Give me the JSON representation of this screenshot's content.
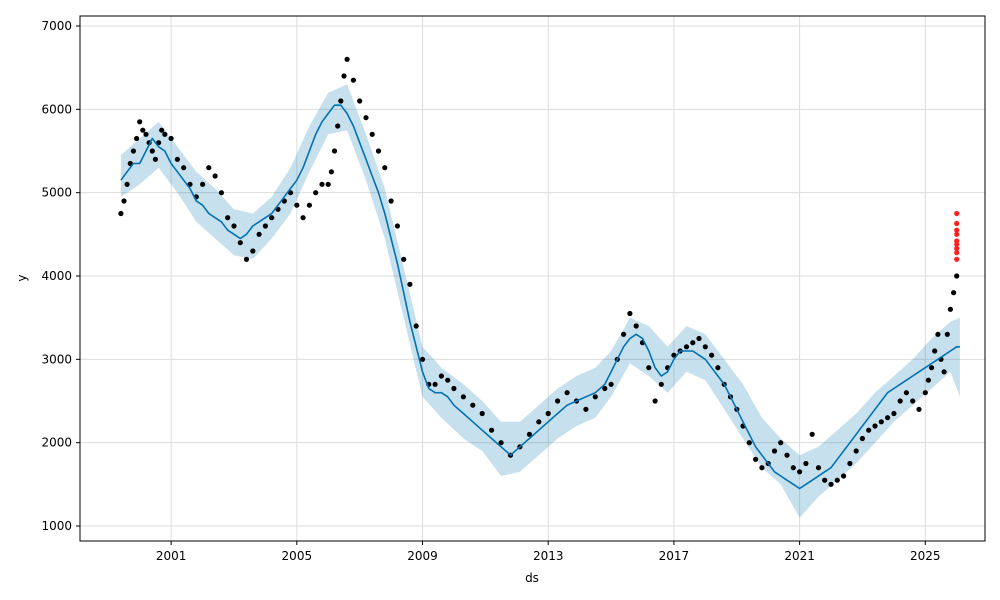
{
  "chart_data": {
    "type": "scatter",
    "title": "",
    "xlabel": "ds",
    "ylabel": "y",
    "xlim": [
      1998.1,
      2026.9
    ],
    "ylim": [
      820,
      7120
    ],
    "grid": true,
    "legend": "none",
    "x_ticks": [
      {
        "value": 2001,
        "label": "2001"
      },
      {
        "value": 2005,
        "label": "2005"
      },
      {
        "value": 2009,
        "label": "2009"
      },
      {
        "value": 2013,
        "label": "2013"
      },
      {
        "value": 2017,
        "label": "2017"
      },
      {
        "value": 2021,
        "label": "2021"
      },
      {
        "value": 2025,
        "label": "2025"
      }
    ],
    "y_ticks": [
      {
        "value": 1000,
        "label": "1000"
      },
      {
        "value": 2000,
        "label": "2000"
      },
      {
        "value": 3000,
        "label": "3000"
      },
      {
        "value": 4000,
        "label": "4000"
      },
      {
        "value": 5000,
        "label": "5000"
      },
      {
        "value": 6000,
        "label": "6000"
      },
      {
        "value": 7000,
        "label": "7000"
      }
    ],
    "colors": {
      "observed": "#000000",
      "forecast": "#0072B2",
      "interval": "#0072B2",
      "recent": "#ff2020",
      "grid": "#dddddd"
    },
    "series": [
      {
        "role": "observed",
        "kind": "scatter",
        "x": [
          1999.4,
          1999.5,
          1999.6,
          1999.7,
          1999.8,
          1999.9,
          2000.0,
          2000.1,
          2000.2,
          2000.3,
          2000.4,
          2000.5,
          2000.6,
          2000.7,
          2000.8,
          2001.0,
          2001.2,
          2001.4,
          2001.6,
          2001.8,
          2002.0,
          2002.2,
          2002.4,
          2002.6,
          2002.8,
          2003.0,
          2003.2,
          2003.4,
          2003.6,
          2003.8,
          2004.0,
          2004.2,
          2004.4,
          2004.6,
          2004.8,
          2005.0,
          2005.2,
          2005.4,
          2005.6,
          2005.8,
          2006.0,
          2006.1,
          2006.2,
          2006.3,
          2006.4,
          2006.5,
          2006.6,
          2006.8,
          2007.0,
          2007.2,
          2007.4,
          2007.6,
          2007.8,
          2008.0,
          2008.2,
          2008.4,
          2008.6,
          2008.8,
          2009.0,
          2009.2,
          2009.4,
          2009.6,
          2009.8,
          2010.0,
          2010.3,
          2010.6,
          2010.9,
          2011.2,
          2011.5,
          2011.8,
          2012.1,
          2012.4,
          2012.7,
          2013.0,
          2013.3,
          2013.6,
          2013.9,
          2014.2,
          2014.5,
          2014.8,
          2015.0,
          2015.2,
          2015.4,
          2015.6,
          2015.8,
          2016.0,
          2016.2,
          2016.4,
          2016.6,
          2016.8,
          2017.0,
          2017.2,
          2017.4,
          2017.6,
          2017.8,
          2018.0,
          2018.2,
          2018.4,
          2018.6,
          2018.8,
          2019.0,
          2019.2,
          2019.4,
          2019.6,
          2019.8,
          2020.0,
          2020.2,
          2020.4,
          2020.6,
          2020.8,
          2021.0,
          2021.2,
          2021.4,
          2021.6,
          2021.8,
          2022.0,
          2022.2,
          2022.4,
          2022.6,
          2022.8,
          2023.0,
          2023.2,
          2023.4,
          2023.6,
          2023.8,
          2024.0,
          2024.2,
          2024.4,
          2024.6,
          2024.8,
          2025.0,
          2025.1,
          2025.2,
          2025.3,
          2025.4,
          2025.5,
          2025.6,
          2025.7,
          2025.8,
          2025.9,
          2026.0
        ],
        "y": [
          4750,
          4900,
          5100,
          5350,
          5500,
          5650,
          5850,
          5750,
          5700,
          5600,
          5500,
          5400,
          5600,
          5750,
          5700,
          5650,
          5400,
          5300,
          5100,
          4950,
          5100,
          5300,
          5200,
          5000,
          4700,
          4600,
          4400,
          4200,
          4300,
          4500,
          4600,
          4700,
          4800,
          4900,
          5000,
          4850,
          4700,
          4850,
          5000,
          5100,
          5100,
          5250,
          5500,
          5800,
          6100,
          6400,
          6600,
          6350,
          6100,
          5900,
          5700,
          5500,
          5300,
          4900,
          4600,
          4200,
          3900,
          3400,
          3000,
          2700,
          2700,
          2800,
          2750,
          2650,
          2550,
          2450,
          2350,
          2150,
          2000,
          1850,
          1950,
          2100,
          2250,
          2350,
          2500,
          2600,
          2500,
          2400,
          2550,
          2650,
          2700,
          3000,
          3300,
          3550,
          3400,
          3200,
          2900,
          2500,
          2700,
          2900,
          3050,
          3100,
          3150,
          3200,
          3250,
          3150,
          3050,
          2900,
          2700,
          2550,
          2400,
          2200,
          2000,
          1800,
          1700,
          1750,
          1900,
          2000,
          1850,
          1700,
          1650,
          1750,
          2100,
          1700,
          1550,
          1500,
          1550,
          1600,
          1750,
          1900,
          2050,
          2150,
          2200,
          2250,
          2300,
          2350,
          2500,
          2600,
          2500,
          2400,
          2600,
          2750,
          2900,
          3100,
          3300,
          3000,
          2850,
          3300,
          3600,
          3800,
          4000
        ]
      },
      {
        "role": "forecast",
        "kind": "line",
        "x": [
          1999.4,
          1999.6,
          1999.8,
          2000.0,
          2000.2,
          2000.4,
          2000.6,
          2000.8,
          2001.0,
          2001.2,
          2001.4,
          2001.6,
          2001.8,
          2002.0,
          2002.2,
          2002.4,
          2002.6,
          2002.8,
          2003.0,
          2003.2,
          2003.4,
          2003.6,
          2003.8,
          2004.0,
          2004.2,
          2004.4,
          2004.6,
          2004.8,
          2005.0,
          2005.2,
          2005.4,
          2005.6,
          2005.8,
          2006.0,
          2006.2,
          2006.4,
          2006.6,
          2006.8,
          2007.0,
          2007.2,
          2007.4,
          2007.6,
          2007.8,
          2008.0,
          2008.2,
          2008.4,
          2008.6,
          2008.8,
          2009.0,
          2009.2,
          2009.4,
          2009.6,
          2009.8,
          2010.0,
          2010.3,
          2010.6,
          2010.9,
          2011.2,
          2011.5,
          2011.8,
          2012.1,
          2012.4,
          2012.7,
          2013.0,
          2013.3,
          2013.6,
          2013.9,
          2014.2,
          2014.5,
          2014.8,
          2015.0,
          2015.2,
          2015.4,
          2015.6,
          2015.8,
          2016.0,
          2016.2,
          2016.4,
          2016.6,
          2016.8,
          2017.0,
          2017.2,
          2017.4,
          2017.6,
          2017.8,
          2018.0,
          2018.2,
          2018.4,
          2018.6,
          2018.8,
          2019.0,
          2019.2,
          2019.4,
          2019.6,
          2019.8,
          2020.0,
          2020.2,
          2020.4,
          2020.6,
          2020.8,
          2021.0,
          2021.2,
          2021.4,
          2021.6,
          2021.8,
          2022.0,
          2022.2,
          2022.4,
          2022.6,
          2022.8,
          2023.0,
          2023.2,
          2023.4,
          2023.6,
          2023.8,
          2024.0,
          2024.2,
          2024.4,
          2024.6,
          2024.8,
          2025.0,
          2025.2,
          2025.4,
          2025.6,
          2025.8,
          2026.0,
          2026.1
        ],
        "y": [
          5150,
          5250,
          5350,
          5350,
          5500,
          5650,
          5550,
          5500,
          5350,
          5250,
          5150,
          5050,
          4900,
          4850,
          4750,
          4700,
          4650,
          4550,
          4500,
          4450,
          4500,
          4600,
          4650,
          4700,
          4750,
          4850,
          4950,
          5050,
          5150,
          5300,
          5500,
          5700,
          5850,
          5950,
          6050,
          6050,
          5950,
          5800,
          5600,
          5400,
          5200,
          5000,
          4750,
          4450,
          4150,
          3800,
          3450,
          3150,
          2850,
          2650,
          2600,
          2600,
          2550,
          2450,
          2350,
          2250,
          2150,
          2050,
          1950,
          1850,
          1950,
          2050,
          2150,
          2250,
          2350,
          2450,
          2500,
          2550,
          2600,
          2700,
          2850,
          3000,
          3150,
          3250,
          3300,
          3250,
          3100,
          2900,
          2800,
          2850,
          3000,
          3100,
          3100,
          3100,
          3050,
          3000,
          2900,
          2800,
          2700,
          2550,
          2400,
          2250,
          2100,
          1950,
          1850,
          1750,
          1650,
          1600,
          1550,
          1500,
          1450,
          1500,
          1550,
          1600,
          1650,
          1700,
          1800,
          1900,
          2000,
          2100,
          2200,
          2300,
          2400,
          2500,
          2600,
          2650,
          2700,
          2750,
          2800,
          2850,
          2900,
          2950,
          3000,
          3050,
          3100,
          3150,
          3150
        ]
      },
      {
        "role": "interval",
        "kind": "area",
        "x": [
          1999.4,
          2000.0,
          2000.6,
          2001.2,
          2001.8,
          2002.4,
          2003.0,
          2003.6,
          2004.2,
          2004.8,
          2005.4,
          2006.0,
          2006.6,
          2007.2,
          2007.8,
          2008.4,
          2009.0,
          2009.6,
          2010.3,
          2010.9,
          2011.5,
          2012.1,
          2012.7,
          2013.3,
          2013.9,
          2014.5,
          2015.0,
          2015.6,
          2016.2,
          2016.8,
          2017.4,
          2018.0,
          2018.6,
          2019.2,
          2019.8,
          2020.4,
          2021.0,
          2021.6,
          2022.2,
          2022.8,
          2023.4,
          2024.0,
          2024.6,
          2025.2,
          2025.8,
          2026.1
        ],
        "upper": [
          5450,
          5650,
          5850,
          5550,
          5250,
          5050,
          4800,
          4750,
          4950,
          5300,
          5800,
          6200,
          6300,
          5700,
          5050,
          4100,
          3150,
          2900,
          2700,
          2500,
          2250,
          2250,
          2450,
          2650,
          2800,
          2900,
          3100,
          3500,
          3400,
          3150,
          3400,
          3300,
          3000,
          2700,
          2300,
          2050,
          1850,
          1950,
          2150,
          2350,
          2600,
          2800,
          3000,
          3250,
          3450,
          3500
        ],
        "lower": [
          4950,
          5100,
          5300,
          5000,
          4650,
          4450,
          4250,
          4200,
          4450,
          4750,
          5250,
          5700,
          5750,
          5150,
          4450,
          3500,
          2550,
          2300,
          2050,
          1900,
          1600,
          1650,
          1850,
          2050,
          2200,
          2300,
          2550,
          2950,
          2800,
          2600,
          2850,
          2750,
          2400,
          2050,
          1700,
          1500,
          1100,
          1350,
          1550,
          1750,
          2000,
          2250,
          2450,
          2650,
          2850,
          2550
        ]
      },
      {
        "role": "recent",
        "kind": "scatter",
        "x": [
          2026.0,
          2026.0,
          2026.0,
          2026.0,
          2026.0,
          2026.0,
          2026.0,
          2026.0,
          2026.0
        ],
        "y": [
          4200,
          4280,
          4330,
          4380,
          4420,
          4500,
          4550,
          4630,
          4750
        ]
      }
    ]
  }
}
